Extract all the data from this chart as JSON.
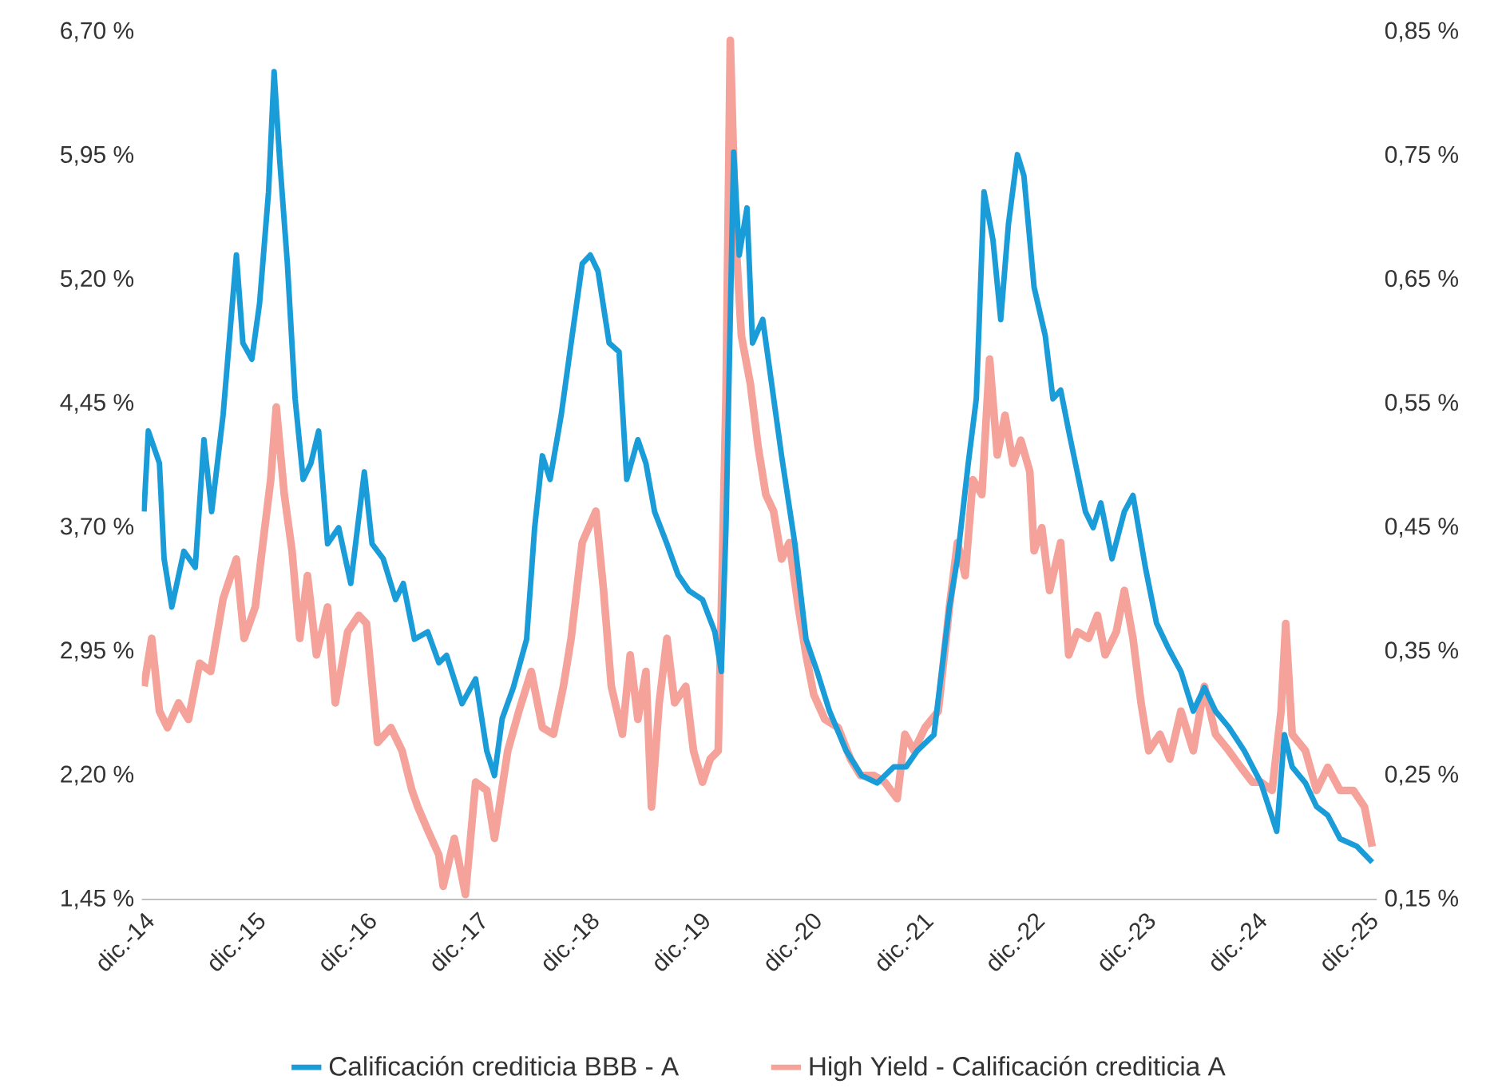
{
  "chart_data": {
    "type": "line",
    "xlim": [
      "2014-11-25",
      "2026-01-01"
    ],
    "xticks": [
      {
        "value": "2014-12-01",
        "label": "dic.-14"
      },
      {
        "value": "2015-12-01",
        "label": "dic.-15"
      },
      {
        "value": "2016-12-01",
        "label": "dic.-16"
      },
      {
        "value": "2017-12-01",
        "label": "dic.-17"
      },
      {
        "value": "2018-12-01",
        "label": "dic.-18"
      },
      {
        "value": "2019-12-01",
        "label": "dic.-19"
      },
      {
        "value": "2020-12-01",
        "label": "dic.-20"
      },
      {
        "value": "2021-12-01",
        "label": "dic.-21"
      },
      {
        "value": "2022-12-01",
        "label": "dic.-22"
      },
      {
        "value": "2023-12-01",
        "label": "dic.-23"
      },
      {
        "value": "2024-12-01",
        "label": "dic.-24"
      },
      {
        "value": "2025-12-01",
        "label": "dic.-25"
      }
    ],
    "ylim": [
      1.45,
      6.7
    ],
    "yticks": [
      {
        "value": 1.45,
        "label": "1,45 %"
      },
      {
        "value": 2.2,
        "label": "2,20 %"
      },
      {
        "value": 2.95,
        "label": "2,95 %"
      },
      {
        "value": 3.7,
        "label": "3,70 %"
      },
      {
        "value": 4.45,
        "label": "4,45 %"
      },
      {
        "value": 5.2,
        "label": "5,20 %"
      },
      {
        "value": 5.95,
        "label": "5,95 %"
      },
      {
        "value": 6.7,
        "label": "6,70 %"
      }
    ],
    "y2lim": [
      0.15,
      0.85
    ],
    "y2ticks": [
      {
        "value": 0.15,
        "label": "0,15 %"
      },
      {
        "value": 0.25,
        "label": "0,25 %"
      },
      {
        "value": 0.35,
        "label": "0,35 %"
      },
      {
        "value": 0.45,
        "label": "0,45 %"
      },
      {
        "value": 0.55,
        "label": "0,55 %"
      },
      {
        "value": 0.65,
        "label": "0,65 %"
      },
      {
        "value": 0.75,
        "label": "0,75 %"
      },
      {
        "value": 0.85,
        "label": "0,85 %"
      }
    ],
    "legend": "bottom",
    "series": [
      {
        "name": "Calificación crediticia BBB - A",
        "color": "#1a9cd8",
        "axis": "y2",
        "x": [
          "2014-12-02",
          "2014-12-16",
          "2015-01-22",
          "2015-02-07",
          "2015-03-02",
          "2015-04-11",
          "2015-05-18",
          "2015-06-16",
          "2015-07-11",
          "2015-08-18",
          "2015-10-01",
          "2015-10-22",
          "2015-11-21",
          "2015-12-16",
          "2016-01-15",
          "2016-02-03",
          "2016-02-21",
          "2016-03-16",
          "2016-04-11",
          "2016-05-07",
          "2016-06-02",
          "2016-06-27",
          "2016-07-26",
          "2016-09-02",
          "2016-10-11",
          "2016-11-25",
          "2016-12-20",
          "2017-01-26",
          "2017-03-06",
          "2017-04-01",
          "2017-05-07",
          "2017-06-20",
          "2017-07-26",
          "2017-08-21",
          "2017-10-11",
          "2017-11-25",
          "2018-01-01",
          "2018-01-26",
          "2018-02-21",
          "2018-03-27",
          "2018-05-10",
          "2018-06-06",
          "2018-07-01",
          "2018-07-26",
          "2018-09-02",
          "2018-10-04",
          "2018-11-10",
          "2018-12-06",
          "2019-01-01",
          "2019-02-07",
          "2019-03-09",
          "2019-04-04",
          "2019-05-10",
          "2019-06-06",
          "2019-07-04",
          "2019-08-14",
          "2019-09-20",
          "2019-10-26",
          "2019-12-09",
          "2020-01-19",
          "2020-02-10",
          "2020-02-25",
          "2020-03-20",
          "2020-04-08",
          "2020-05-03",
          "2020-05-21",
          "2020-06-24",
          "2020-07-19",
          "2020-08-25",
          "2020-10-08",
          "2020-11-14",
          "2020-12-20",
          "2021-01-30",
          "2021-03-24",
          "2021-05-14",
          "2021-07-04",
          "2021-08-28",
          "2021-10-08",
          "2021-11-14",
          "2022-01-08",
          "2022-02-28",
          "2022-03-24",
          "2022-04-29",
          "2022-05-25",
          "2022-06-20",
          "2022-07-19",
          "2022-08-14",
          "2022-09-09",
          "2022-10-08",
          "2022-10-29",
          "2022-12-02",
          "2023-01-08",
          "2023-02-03",
          "2023-02-28",
          "2023-03-24",
          "2023-05-18",
          "2023-06-13",
          "2023-07-08",
          "2023-08-14",
          "2023-09-24",
          "2023-10-22",
          "2023-12-02",
          "2024-01-08",
          "2024-02-14",
          "2024-03-27",
          "2024-05-07",
          "2024-06-13",
          "2024-07-19",
          "2024-09-02",
          "2024-10-22",
          "2024-12-16",
          "2025-02-07",
          "2025-03-02",
          "2025-03-27",
          "2025-05-10",
          "2025-06-16",
          "2025-07-22",
          "2025-09-02",
          "2025-10-26",
          "2025-12-16"
        ],
        "values": [
          0.463,
          0.528,
          0.502,
          0.425,
          0.386,
          0.431,
          0.418,
          0.521,
          0.463,
          0.541,
          0.67,
          0.599,
          0.586,
          0.631,
          0.721,
          0.818,
          0.747,
          0.663,
          0.554,
          0.489,
          0.502,
          0.528,
          0.437,
          0.45,
          0.405,
          0.495,
          0.437,
          0.425,
          0.392,
          0.405,
          0.36,
          0.366,
          0.341,
          0.347,
          0.308,
          0.328,
          0.27,
          0.25,
          0.296,
          0.321,
          0.36,
          0.45,
          0.508,
          0.489,
          0.541,
          0.599,
          0.663,
          0.67,
          0.657,
          0.599,
          0.592,
          0.489,
          0.521,
          0.502,
          0.463,
          0.437,
          0.412,
          0.399,
          0.392,
          0.366,
          0.334,
          0.45,
          0.753,
          0.67,
          0.708,
          0.599,
          0.618,
          0.573,
          0.508,
          0.437,
          0.36,
          0.334,
          0.302,
          0.27,
          0.25,
          0.244,
          0.257,
          0.257,
          0.27,
          0.283,
          0.386,
          0.425,
          0.502,
          0.554,
          0.721,
          0.682,
          0.618,
          0.695,
          0.751,
          0.734,
          0.644,
          0.605,
          0.554,
          0.561,
          0.528,
          0.463,
          0.45,
          0.47,
          0.425,
          0.463,
          0.476,
          0.418,
          0.373,
          0.354,
          0.334,
          0.302,
          0.321,
          0.302,
          0.289,
          0.27,
          0.244,
          0.205,
          0.283,
          0.257,
          0.244,
          0.225,
          0.218,
          0.199,
          0.193,
          0.18
        ]
      },
      {
        "name": "High Yield - Calificación crediticia A",
        "color": "#f4a29a",
        "x": [
          "2014-12-02",
          "2014-12-27",
          "2015-01-22",
          "2015-02-18",
          "2015-03-24",
          "2015-04-26",
          "2015-06-02",
          "2015-07-08",
          "2015-08-18",
          "2015-10-01",
          "2015-10-26",
          "2015-12-02",
          "2015-12-27",
          "2016-01-22",
          "2016-02-10",
          "2016-03-06",
          "2016-04-01",
          "2016-04-26",
          "2016-05-21",
          "2016-06-20",
          "2016-07-26",
          "2016-08-21",
          "2016-10-01",
          "2016-11-07",
          "2016-12-02",
          "2017-01-08",
          "2017-02-21",
          "2017-03-27",
          "2017-04-29",
          "2017-05-18",
          "2017-06-20",
          "2017-07-26",
          "2017-08-10",
          "2017-09-16",
          "2017-10-22",
          "2017-11-25",
          "2018-01-01",
          "2018-01-26",
          "2018-03-09",
          "2018-04-15",
          "2018-05-25",
          "2018-07-01",
          "2018-08-07",
          "2018-09-09",
          "2018-10-04",
          "2018-11-10",
          "2018-12-24",
          "2019-01-19",
          "2019-02-14",
          "2019-03-20",
          "2019-04-15",
          "2019-05-10",
          "2019-06-06",
          "2019-06-24",
          "2019-07-19",
          "2019-08-14",
          "2019-09-09",
          "2019-10-15",
          "2019-11-10",
          "2019-12-09",
          "2020-01-04",
          "2020-01-30",
          "2020-02-25",
          "2020-03-09",
          "2020-03-27",
          "2020-04-15",
          "2020-05-14",
          "2020-06-09",
          "2020-07-04",
          "2020-07-29",
          "2020-08-25",
          "2020-09-20",
          "2020-10-19",
          "2020-11-14",
          "2020-12-09",
          "2021-01-15",
          "2021-02-28",
          "2021-04-08",
          "2021-05-10",
          "2021-06-24",
          "2021-07-29",
          "2021-09-09",
          "2021-10-04",
          "2021-11-03",
          "2021-12-09",
          "2022-01-22",
          "2022-02-28",
          "2022-03-24",
          "2022-04-19",
          "2022-05-14",
          "2022-06-13",
          "2022-07-08",
          "2022-08-03",
          "2022-08-28",
          "2022-09-24",
          "2022-10-19",
          "2022-11-18",
          "2022-12-02",
          "2022-12-27",
          "2023-01-22",
          "2023-02-28",
          "2023-03-24",
          "2023-04-22",
          "2023-05-28",
          "2023-06-27",
          "2023-07-22",
          "2023-08-28",
          "2023-09-24",
          "2023-10-22",
          "2023-11-18",
          "2023-12-13",
          "2024-01-19",
          "2024-02-21",
          "2024-03-27",
          "2024-05-07",
          "2024-06-13",
          "2024-07-19",
          "2024-09-02",
          "2024-10-11",
          "2024-11-18",
          "2024-12-16",
          "2025-01-22",
          "2025-02-21",
          "2025-03-06",
          "2025-03-27",
          "2025-05-10",
          "2025-06-16",
          "2025-07-22",
          "2025-09-02",
          "2025-10-15",
          "2025-11-21",
          "2025-12-16"
        ],
        "values": [
          2.74,
          3.03,
          2.59,
          2.49,
          2.64,
          2.54,
          2.88,
          2.83,
          3.27,
          3.51,
          3.03,
          3.22,
          3.61,
          3.99,
          4.43,
          3.9,
          3.56,
          3.03,
          3.41,
          2.93,
          3.22,
          2.64,
          3.07,
          3.17,
          3.12,
          2.4,
          2.49,
          2.35,
          2.11,
          2.01,
          1.87,
          1.72,
          1.53,
          1.82,
          1.48,
          2.16,
          2.11,
          1.82,
          2.35,
          2.59,
          2.83,
          2.49,
          2.45,
          2.74,
          3.03,
          3.61,
          3.8,
          3.32,
          2.74,
          2.45,
          2.93,
          2.54,
          2.83,
          2.01,
          2.64,
          3.03,
          2.64,
          2.74,
          2.35,
          2.16,
          2.3,
          2.35,
          4.48,
          6.65,
          5.44,
          4.86,
          4.57,
          4.19,
          3.9,
          3.8,
          3.51,
          3.61,
          3.22,
          2.93,
          2.69,
          2.54,
          2.49,
          2.3,
          2.2,
          2.2,
          2.16,
          2.06,
          2.45,
          2.35,
          2.49,
          2.59,
          3.22,
          3.61,
          3.41,
          3.99,
          3.9,
          4.72,
          4.14,
          4.38,
          4.09,
          4.23,
          4.04,
          3.56,
          3.7,
          3.32,
          3.61,
          2.93,
          3.07,
          3.03,
          3.17,
          2.93,
          3.07,
          3.32,
          3.03,
          2.64,
          2.35,
          2.45,
          2.3,
          2.59,
          2.35,
          2.74,
          2.45,
          2.35,
          2.25,
          2.16,
          2.16,
          2.11,
          2.59,
          3.12,
          2.45,
          2.35,
          2.11,
          2.25,
          2.11,
          2.11,
          2.01,
          1.77
        ]
      }
    ]
  }
}
